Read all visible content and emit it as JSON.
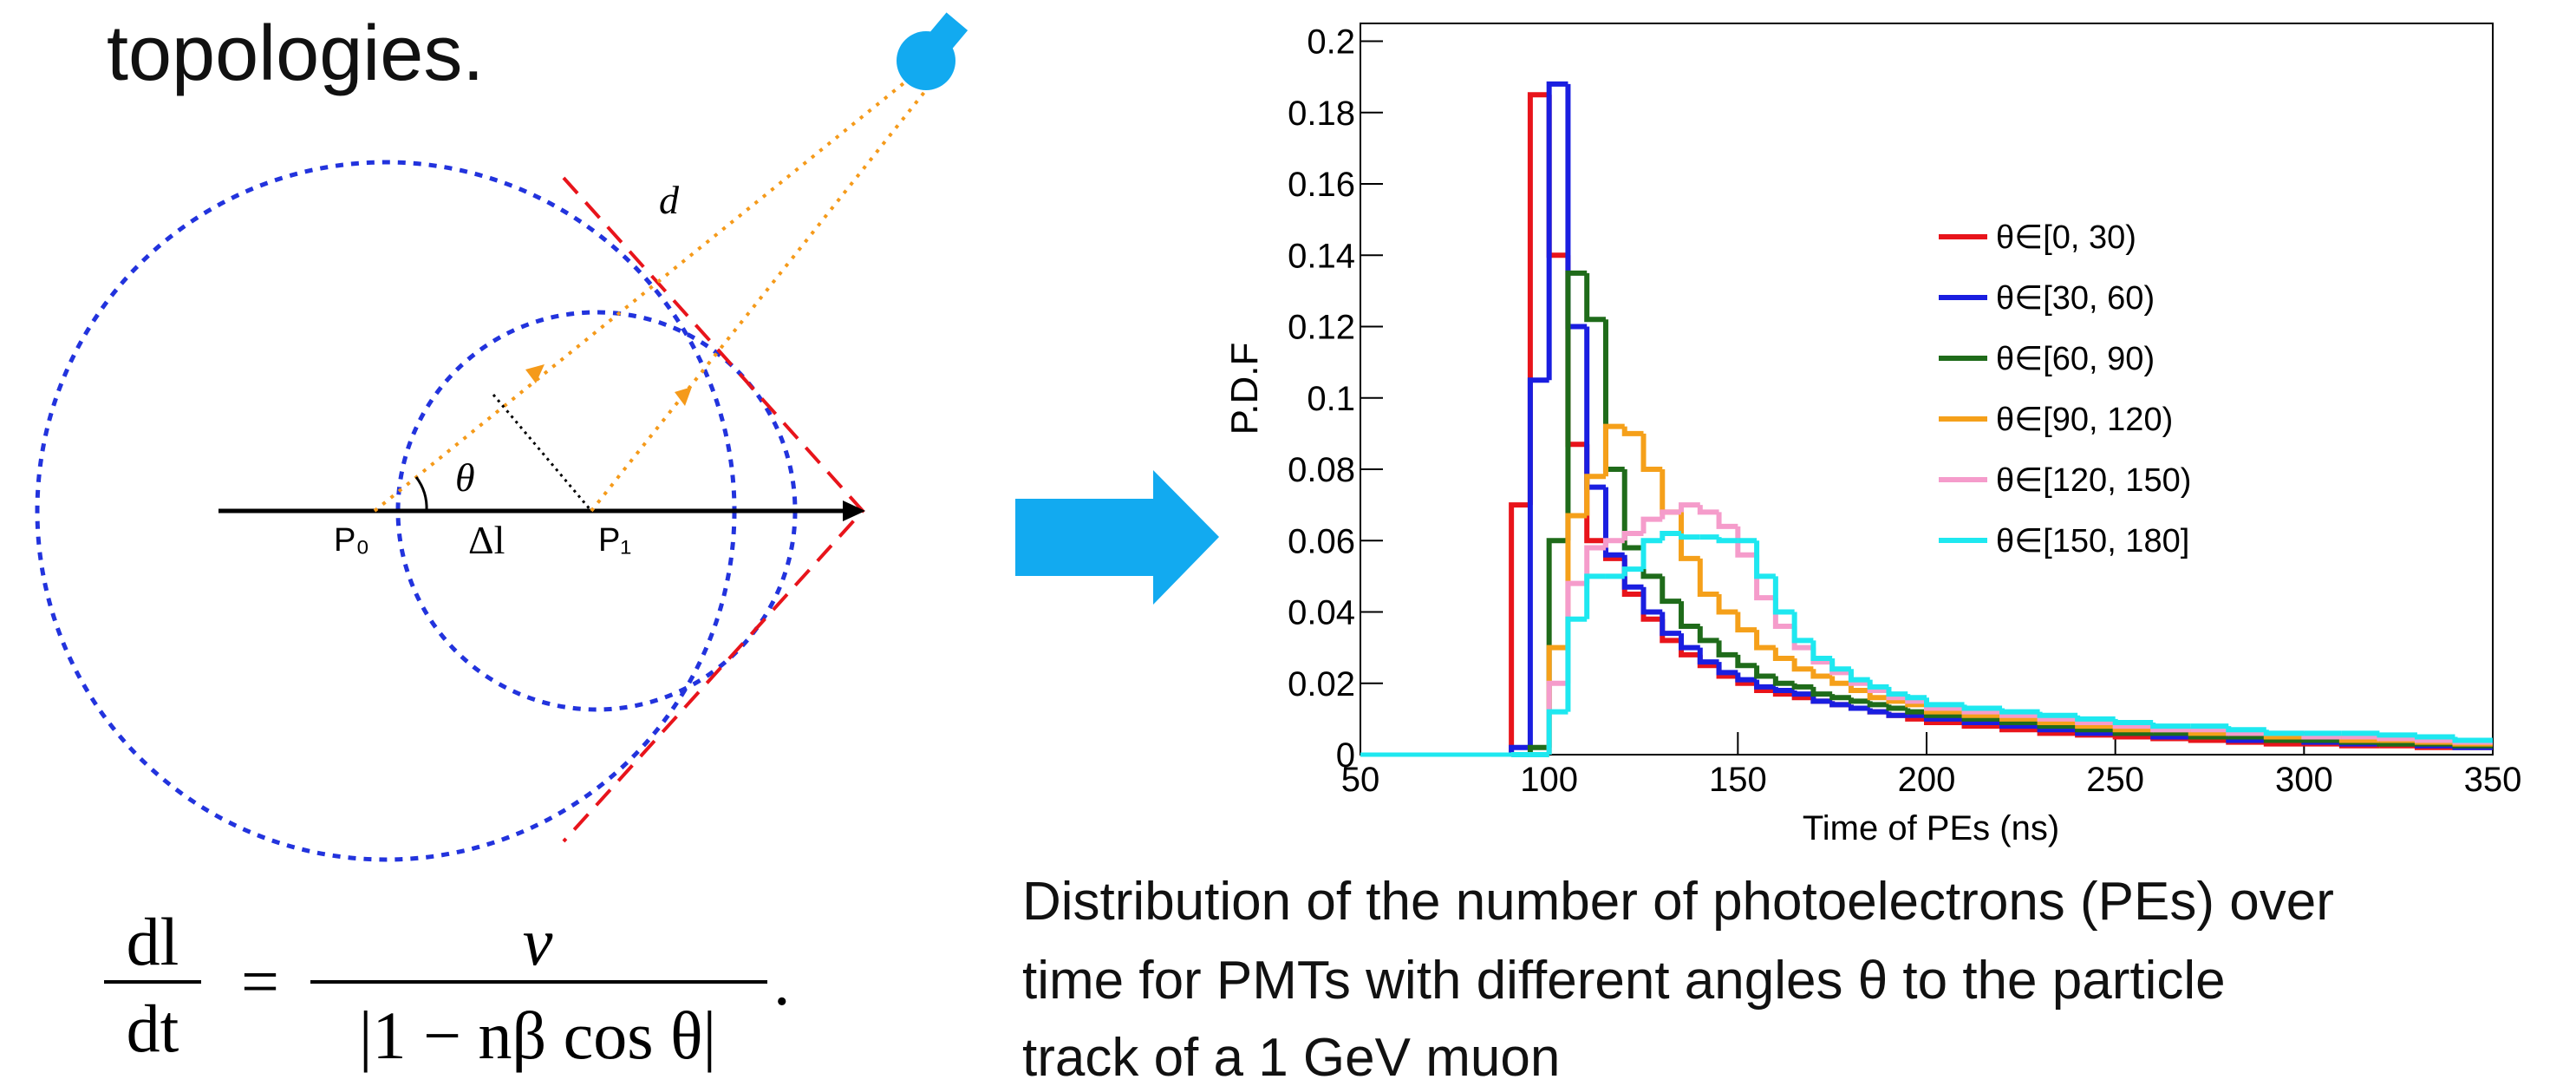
{
  "slide": {
    "heading": "topologies.",
    "diagram": {
      "d": "d",
      "theta": "θ",
      "p0": "P₀",
      "delta_l": "Δl",
      "p1": "P₁"
    },
    "formula": {
      "lhs_num": "dl",
      "lhs_den": "dt",
      "equals": "=",
      "rhs_num": "v",
      "rhs_den": "|1 − nβ cos θ|",
      "end": "."
    },
    "caption": [
      "Distribution of the number of photoelectrons (PEs) over",
      "time for PMTs with different angles θ to the particle",
      "track of a 1 GeV muon"
    ]
  },
  "chart_data": {
    "type": "histogram",
    "xlabel": "Time of PEs (ns)",
    "ylabel": "P.D.F",
    "xlim": [
      50,
      350
    ],
    "ylim": [
      0,
      0.205
    ],
    "xticks": [
      50,
      100,
      150,
      200,
      250,
      300,
      350
    ],
    "yticks": [
      0,
      0.02,
      0.04,
      0.06,
      0.08,
      0.1,
      0.12,
      0.14,
      0.16,
      0.18,
      0.2
    ],
    "legend": "right",
    "bins": [
      90,
      95,
      100,
      105,
      110,
      115,
      120,
      125,
      130,
      135,
      140,
      145,
      150,
      155,
      160,
      165,
      170,
      175,
      180,
      185,
      190,
      195,
      200,
      210,
      220,
      230,
      240,
      250,
      260,
      270,
      280,
      290,
      300,
      310,
      320,
      330,
      340,
      350
    ],
    "series": [
      {
        "name": "θ∈[0, 30)",
        "color": "#e8141b",
        "values": [
          0.07,
          0.185,
          0.14,
          0.087,
          0.06,
          0.055,
          0.045,
          0.038,
          0.032,
          0.028,
          0.025,
          0.022,
          0.02,
          0.018,
          0.017,
          0.016,
          0.015,
          0.014,
          0.013,
          0.012,
          0.011,
          0.01,
          0.009,
          0.008,
          0.007,
          0.006,
          0.0055,
          0.005,
          0.0045,
          0.004,
          0.0035,
          0.003,
          0.003,
          0.0025,
          0.0025,
          0.002,
          0.002
        ]
      },
      {
        "name": "θ∈[30, 60)",
        "color": "#1a1ee0",
        "values": [
          0.002,
          0.105,
          0.188,
          0.12,
          0.075,
          0.056,
          0.047,
          0.04,
          0.034,
          0.03,
          0.026,
          0.023,
          0.021,
          0.019,
          0.018,
          0.017,
          0.015,
          0.014,
          0.013,
          0.012,
          0.011,
          0.011,
          0.01,
          0.009,
          0.008,
          0.007,
          0.006,
          0.006,
          0.005,
          0.005,
          0.004,
          0.004,
          0.0035,
          0.003,
          0.003,
          0.0025,
          0.002
        ]
      },
      {
        "name": "θ∈[60, 90)",
        "color": "#1f6b1a",
        "values": [
          0,
          0.002,
          0.06,
          0.135,
          0.122,
          0.08,
          0.058,
          0.05,
          0.043,
          0.036,
          0.032,
          0.028,
          0.025,
          0.022,
          0.02,
          0.019,
          0.017,
          0.016,
          0.015,
          0.014,
          0.013,
          0.012,
          0.011,
          0.01,
          0.009,
          0.008,
          0.007,
          0.006,
          0.006,
          0.005,
          0.005,
          0.004,
          0.004,
          0.0035,
          0.003,
          0.003,
          0.0025
        ]
      },
      {
        "name": "θ∈[90, 120)",
        "color": "#f5a01a",
        "values": [
          0,
          0,
          0.03,
          0.067,
          0.078,
          0.092,
          0.09,
          0.08,
          0.068,
          0.055,
          0.045,
          0.04,
          0.035,
          0.03,
          0.027,
          0.024,
          0.022,
          0.02,
          0.018,
          0.016,
          0.015,
          0.014,
          0.012,
          0.011,
          0.01,
          0.009,
          0.008,
          0.007,
          0.007,
          0.006,
          0.006,
          0.005,
          0.005,
          0.004,
          0.004,
          0.0035,
          0.003
        ]
      },
      {
        "name": "θ∈[120, 150)",
        "color": "#f59ccb",
        "values": [
          0,
          0,
          0.02,
          0.048,
          0.058,
          0.06,
          0.062,
          0.066,
          0.068,
          0.07,
          0.068,
          0.064,
          0.056,
          0.044,
          0.036,
          0.03,
          0.026,
          0.023,
          0.02,
          0.018,
          0.016,
          0.015,
          0.013,
          0.012,
          0.011,
          0.01,
          0.009,
          0.008,
          0.007,
          0.007,
          0.006,
          0.006,
          0.005,
          0.005,
          0.0045,
          0.004,
          0.0035
        ]
      },
      {
        "name": "θ∈[150, 180]",
        "color": "#1ee8f0",
        "values": [
          0,
          0,
          0.012,
          0.038,
          0.05,
          0.05,
          0.052,
          0.06,
          0.062,
          0.061,
          0.061,
          0.06,
          0.06,
          0.05,
          0.04,
          0.032,
          0.027,
          0.024,
          0.021,
          0.019,
          0.017,
          0.016,
          0.014,
          0.013,
          0.012,
          0.011,
          0.01,
          0.009,
          0.008,
          0.008,
          0.007,
          0.006,
          0.006,
          0.006,
          0.0055,
          0.005,
          0.004
        ]
      }
    ]
  }
}
